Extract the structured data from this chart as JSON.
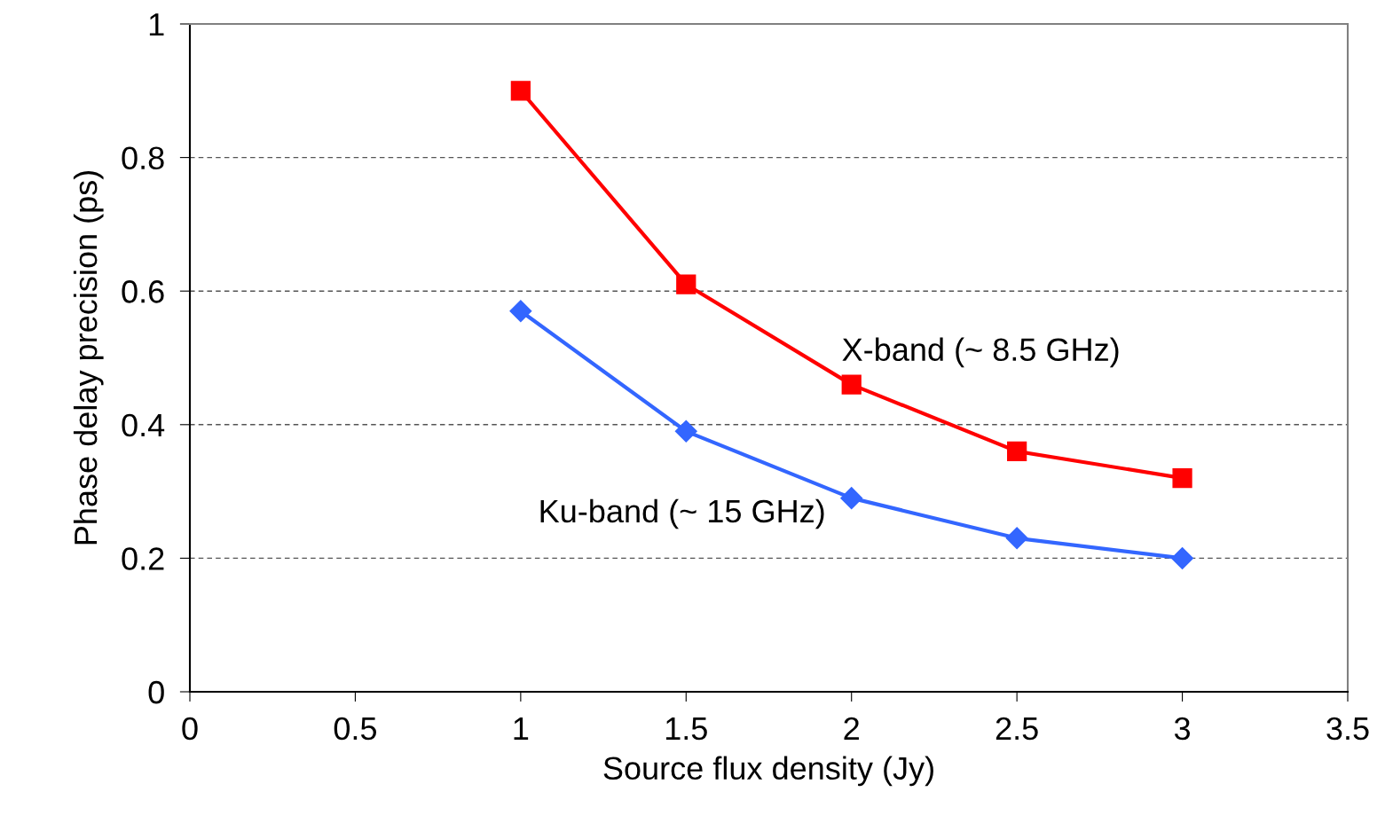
{
  "chart_data": {
    "type": "line",
    "xlabel": "Source flux density (Jy)",
    "ylabel": "Phase delay precision (ps)",
    "x": [
      1,
      1.5,
      2,
      2.5,
      3
    ],
    "series": [
      {
        "name": "X-band (~ 8.5 GHz)",
        "color": "#ff0000",
        "marker": "square",
        "values": [
          0.9,
          0.61,
          0.46,
          0.36,
          0.32
        ]
      },
      {
        "name": "Ku-band (~ 15 GHz)",
        "color": "#3366ff",
        "marker": "diamond",
        "values": [
          0.57,
          0.39,
          0.29,
          0.23,
          0.2
        ]
      }
    ],
    "xlim": [
      0,
      3.5
    ],
    "xticks": [
      0,
      0.5,
      1,
      1.5,
      2,
      2.5,
      3,
      3.5
    ],
    "ylim": [
      0,
      1
    ],
    "yticks": [
      0,
      0.2,
      0.4,
      0.6,
      0.8,
      1
    ],
    "grid": "y",
    "legend": false,
    "line_style": "solid"
  }
}
